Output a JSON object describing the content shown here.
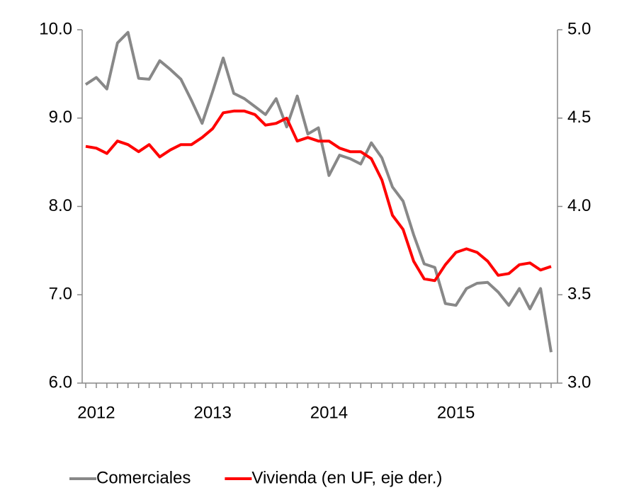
{
  "chart_data": {
    "type": "line",
    "categories": [
      null,
      "2012",
      null,
      null,
      null,
      null,
      null,
      null,
      null,
      null,
      null,
      null,
      "2013",
      null,
      null,
      null,
      null,
      null,
      null,
      null,
      null,
      null,
      null,
      "2014",
      null,
      null,
      null,
      null,
      null,
      null,
      null,
      null,
      null,
      null,
      null,
      "2015",
      null,
      null,
      null,
      null,
      null,
      null,
      null,
      null,
      null
    ],
    "series": [
      {
        "name": "Comerciales",
        "color": "#888888",
        "values": [
          9.38,
          9.46,
          9.33,
          9.85,
          9.97,
          9.45,
          9.44,
          9.65,
          9.55,
          9.44,
          9.2,
          8.94,
          9.3,
          9.68,
          9.28,
          9.22,
          9.13,
          9.04,
          9.22,
          8.9,
          9.25,
          8.82,
          8.89,
          8.35,
          8.58,
          8.54,
          8.48,
          8.72,
          8.55,
          8.22,
          8.06,
          7.68,
          7.35,
          7.31,
          6.9,
          6.88,
          7.07,
          7.13,
          7.14,
          7.03,
          6.88,
          7.07,
          6.84,
          7.07,
          6.35
        ]
      },
      {
        "name": "Vivienda (en UF, eje der.)",
        "color": "#ff0000",
        "axis": "y2",
        "values": [
          4.34,
          4.33,
          4.3,
          4.37,
          4.35,
          4.31,
          4.35,
          4.28,
          4.32,
          4.35,
          4.35,
          4.39,
          4.44,
          4.53,
          4.54,
          4.54,
          4.52,
          4.46,
          4.47,
          4.5,
          4.37,
          4.39,
          4.37,
          4.37,
          4.33,
          4.31,
          4.31,
          4.27,
          4.15,
          3.95,
          3.87,
          3.69,
          3.59,
          3.58,
          3.67,
          3.74,
          3.76,
          3.74,
          3.69,
          3.61,
          3.62,
          3.67,
          3.68,
          3.64,
          3.66
        ]
      }
    ],
    "ylim": [
      6,
      10
    ],
    "yticks": [
      {
        "value": 6,
        "label": "6.0"
      },
      {
        "value": 7,
        "label": "7.0"
      },
      {
        "value": 8,
        "label": "8.0"
      },
      {
        "value": 9,
        "label": "9.0"
      },
      {
        "value": 10,
        "label": "10.0"
      }
    ],
    "y2lim": [
      3,
      5
    ],
    "y2ticks": [
      {
        "value": 3,
        "label": "3.0"
      },
      {
        "value": 3.5,
        "label": "3.5"
      },
      {
        "value": 4,
        "label": "4.0"
      },
      {
        "value": 4.5,
        "label": "4.5"
      },
      {
        "value": 5,
        "label": "5.0"
      }
    ],
    "legend": "bottom"
  }
}
